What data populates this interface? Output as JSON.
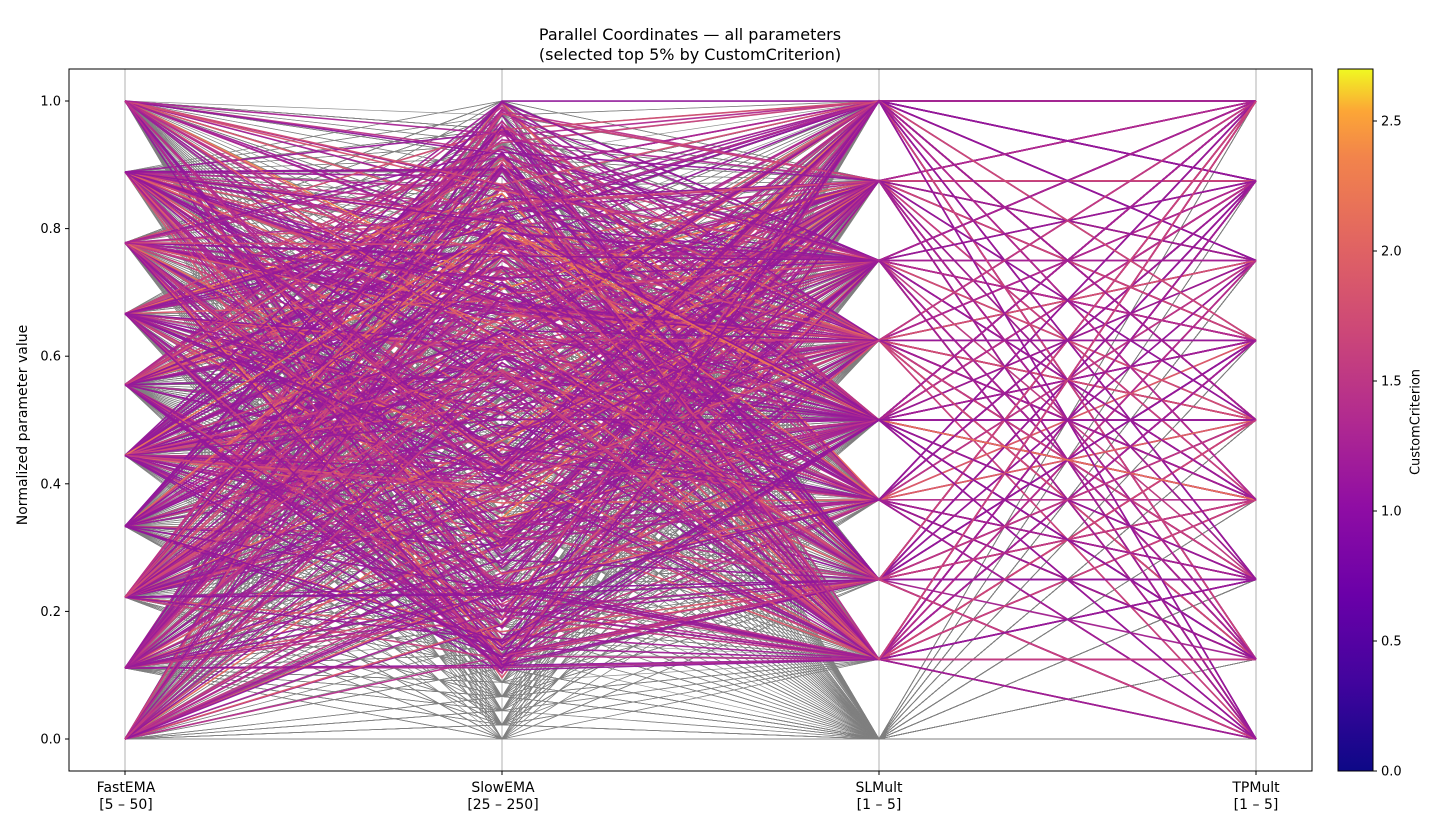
{
  "chart_data": {
    "type": "parallel_coordinates",
    "title": "Parallel Coordinates — all parameters",
    "subtitle": "(selected top 5% by CustomCriterion)",
    "ylabel": "Normalized parameter value",
    "ylim": [
      -0.05,
      1.05
    ],
    "yticks": [
      "0.0",
      "0.2",
      "0.4",
      "0.6",
      "0.8",
      "1.0"
    ],
    "axes": [
      {
        "name": "FastEMA",
        "range_label": "[5 – 50]",
        "levels": 10
      },
      {
        "name": "SlowEMA",
        "range_label": "[25 – 250]",
        "levels": 46
      },
      {
        "name": "SLMult",
        "range_label": "[1 – 5]",
        "levels": 9
      },
      {
        "name": "TPMult",
        "range_label": "[1 – 5]",
        "levels": 9
      }
    ],
    "background_line_color": "#808080",
    "selected_fraction": 0.05,
    "colormap": "plasma",
    "colorbar": {
      "label": "CustomCriterion",
      "range": [
        0.0,
        2.7
      ],
      "ticks": [
        "0.0",
        "0.5",
        "1.0",
        "1.5",
        "2.0",
        "2.5"
      ]
    }
  }
}
